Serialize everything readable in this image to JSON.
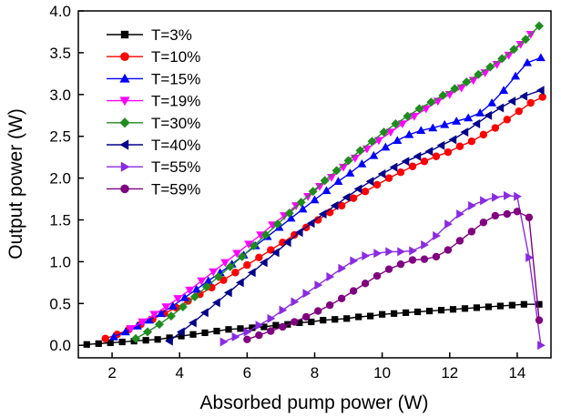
{
  "chart_data": {
    "type": "line",
    "xlabel": "Absorbed pump power (W)",
    "ylabel": "Output power (W)",
    "xlim": [
      1,
      15
    ],
    "ylim": [
      -0.15,
      4.0
    ],
    "xticks": [
      2,
      4,
      6,
      8,
      10,
      12,
      14
    ],
    "yticks": [
      0.0,
      0.5,
      1.0,
      1.5,
      2.0,
      2.5,
      3.0,
      3.5,
      4.0
    ],
    "xtick_labels": [
      "2",
      "4",
      "6",
      "8",
      "10",
      "12",
      "14"
    ],
    "ytick_labels": [
      "0.0",
      "0.5",
      "1.0",
      "1.5",
      "2.0",
      "2.5",
      "3.0",
      "3.5",
      "4.0"
    ],
    "legend_position": "top-left",
    "grid": false,
    "series": [
      {
        "name": "T=3%",
        "color": "#000000",
        "marker": "square",
        "x": [
          1.25,
          1.6,
          1.95,
          2.3,
          2.65,
          3.0,
          3.35,
          3.7,
          4.05,
          4.4,
          4.75,
          5.1,
          5.45,
          5.8,
          6.15,
          6.5,
          6.85,
          7.2,
          7.55,
          7.9,
          8.25,
          8.6,
          8.95,
          9.3,
          9.65,
          10.0,
          10.35,
          10.7,
          11.05,
          11.4,
          11.75,
          12.1,
          12.45,
          12.8,
          13.15,
          13.5,
          13.85,
          14.2,
          14.65
        ],
        "y": [
          0.01,
          0.02,
          0.03,
          0.04,
          0.05,
          0.06,
          0.07,
          0.09,
          0.11,
          0.13,
          0.15,
          0.17,
          0.19,
          0.2,
          0.21,
          0.22,
          0.24,
          0.25,
          0.27,
          0.28,
          0.3,
          0.31,
          0.32,
          0.34,
          0.35,
          0.37,
          0.38,
          0.39,
          0.4,
          0.41,
          0.42,
          0.43,
          0.44,
          0.45,
          0.46,
          0.47,
          0.48,
          0.49,
          0.49
        ]
      },
      {
        "name": "T=10%",
        "color": "#ff0000",
        "marker": "circle",
        "x": [
          1.8,
          2.15,
          2.5,
          2.85,
          3.2,
          3.55,
          3.9,
          4.25,
          4.6,
          4.95,
          5.3,
          5.65,
          6.0,
          6.35,
          6.7,
          7.05,
          7.4,
          7.75,
          8.1,
          8.45,
          8.8,
          9.15,
          9.5,
          9.85,
          10.2,
          10.55,
          10.9,
          11.25,
          11.6,
          11.95,
          12.3,
          12.65,
          13.0,
          13.35,
          13.7,
          14.05,
          14.4,
          14.75
        ],
        "y": [
          0.08,
          0.13,
          0.19,
          0.25,
          0.31,
          0.38,
          0.45,
          0.53,
          0.61,
          0.69,
          0.78,
          0.87,
          0.96,
          1.05,
          1.14,
          1.23,
          1.32,
          1.41,
          1.5,
          1.59,
          1.67,
          1.76,
          1.84,
          1.92,
          2.0,
          2.07,
          2.14,
          2.2,
          2.26,
          2.31,
          2.38,
          2.44,
          2.52,
          2.6,
          2.7,
          2.8,
          2.9,
          2.97
        ]
      },
      {
        "name": "T=15%",
        "color": "#0000ff",
        "marker": "triangle-up",
        "x": [
          2.05,
          2.4,
          2.75,
          3.1,
          3.45,
          3.8,
          4.15,
          4.5,
          4.85,
          5.2,
          5.55,
          5.9,
          6.25,
          6.6,
          6.95,
          7.3,
          7.65,
          8.0,
          8.35,
          8.7,
          9.05,
          9.4,
          9.75,
          10.1,
          10.45,
          10.8,
          11.15,
          11.5,
          11.85,
          12.2,
          12.55,
          12.9,
          13.25,
          13.6,
          13.95,
          14.3,
          14.7
        ],
        "y": [
          0.1,
          0.16,
          0.23,
          0.3,
          0.38,
          0.47,
          0.57,
          0.67,
          0.77,
          0.87,
          0.97,
          1.08,
          1.19,
          1.3,
          1.41,
          1.52,
          1.63,
          1.74,
          1.85,
          1.96,
          2.06,
          2.17,
          2.27,
          2.37,
          2.45,
          2.52,
          2.57,
          2.6,
          2.64,
          2.68,
          2.72,
          2.78,
          2.9,
          3.05,
          3.22,
          3.38,
          3.44
        ]
      },
      {
        "name": "T=19%",
        "color": "#ff00ff",
        "marker": "triangle-down",
        "x": [
          2.55,
          2.9,
          3.25,
          3.6,
          3.95,
          4.3,
          4.65,
          5.0,
          5.35,
          5.7,
          6.05,
          6.4,
          6.75,
          7.1,
          7.45,
          7.8,
          8.15,
          8.5,
          8.85,
          9.2,
          9.55,
          9.9,
          10.25,
          10.6,
          10.95,
          11.3,
          11.65,
          12.0,
          12.35,
          12.7,
          13.05,
          13.4,
          13.75,
          14.1,
          14.4
        ],
        "y": [
          0.2,
          0.28,
          0.37,
          0.46,
          0.56,
          0.66,
          0.77,
          0.88,
          0.99,
          1.1,
          1.21,
          1.32,
          1.44,
          1.55,
          1.67,
          1.78,
          1.9,
          2.01,
          2.13,
          2.24,
          2.35,
          2.45,
          2.55,
          2.65,
          2.74,
          2.83,
          2.92,
          3.0,
          3.08,
          3.17,
          3.26,
          3.36,
          3.47,
          3.6,
          3.72
        ]
      },
      {
        "name": "T=30%",
        "color": "#1e8c1e",
        "marker": "diamond",
        "x": [
          2.7,
          3.05,
          3.4,
          3.75,
          4.1,
          4.45,
          4.8,
          5.15,
          5.5,
          5.85,
          6.2,
          6.55,
          6.9,
          7.25,
          7.6,
          7.95,
          8.3,
          8.65,
          9.0,
          9.35,
          9.7,
          10.05,
          10.4,
          10.75,
          11.1,
          11.45,
          11.8,
          12.15,
          12.5,
          12.85,
          13.2,
          13.55,
          13.9,
          14.25,
          14.65
        ],
        "y": [
          0.08,
          0.16,
          0.25,
          0.35,
          0.46,
          0.58,
          0.7,
          0.82,
          0.94,
          1.06,
          1.19,
          1.32,
          1.45,
          1.58,
          1.71,
          1.84,
          1.97,
          2.09,
          2.21,
          2.33,
          2.44,
          2.55,
          2.65,
          2.74,
          2.83,
          2.91,
          2.99,
          3.07,
          3.15,
          3.24,
          3.33,
          3.43,
          3.54,
          3.66,
          3.82
        ]
      },
      {
        "name": "T=40%",
        "color": "#00008b",
        "marker": "triangle-left",
        "x": [
          3.7,
          4.05,
          4.4,
          4.75,
          5.1,
          5.45,
          5.8,
          6.15,
          6.5,
          6.85,
          7.2,
          7.55,
          7.9,
          8.25,
          8.6,
          8.95,
          9.3,
          9.65,
          10.0,
          10.35,
          10.7,
          11.05,
          11.4,
          11.75,
          12.1,
          12.45,
          12.8,
          13.15,
          13.5,
          13.85,
          14.2,
          14.7
        ],
        "y": [
          0.05,
          0.16,
          0.27,
          0.39,
          0.51,
          0.63,
          0.75,
          0.87,
          0.99,
          1.11,
          1.23,
          1.35,
          1.46,
          1.57,
          1.67,
          1.77,
          1.87,
          1.96,
          2.05,
          2.13,
          2.2,
          2.26,
          2.32,
          2.39,
          2.46,
          2.55,
          2.65,
          2.75,
          2.84,
          2.92,
          2.98,
          3.05
        ]
      },
      {
        "name": "T=55%",
        "color": "#8a2be2",
        "marker": "triangle-right",
        "x": [
          5.3,
          5.65,
          6.0,
          6.35,
          6.7,
          7.05,
          7.4,
          7.75,
          8.1,
          8.45,
          8.8,
          9.15,
          9.5,
          9.85,
          10.2,
          10.55,
          10.9,
          11.25,
          11.6,
          11.95,
          12.3,
          12.65,
          13.0,
          13.35,
          13.7,
          14.0,
          14.35,
          14.7
        ],
        "y": [
          0.04,
          0.1,
          0.16,
          0.24,
          0.32,
          0.42,
          0.52,
          0.62,
          0.72,
          0.82,
          0.92,
          1.01,
          1.07,
          1.1,
          1.12,
          1.12,
          1.13,
          1.2,
          1.31,
          1.45,
          1.57,
          1.67,
          1.73,
          1.77,
          1.79,
          1.78,
          1.05,
          0.0
        ]
      },
      {
        "name": "T=59%",
        "color": "#800080",
        "marker": "circle",
        "x": [
          6.0,
          6.35,
          6.7,
          7.05,
          7.4,
          7.75,
          8.1,
          8.45,
          8.8,
          9.15,
          9.5,
          9.85,
          10.2,
          10.55,
          10.9,
          11.25,
          11.6,
          11.95,
          12.3,
          12.65,
          13.0,
          13.35,
          13.7,
          14.0,
          14.35,
          14.65
        ],
        "y": [
          0.07,
          0.12,
          0.17,
          0.22,
          0.28,
          0.34,
          0.41,
          0.48,
          0.56,
          0.65,
          0.74,
          0.83,
          0.91,
          0.97,
          1.02,
          1.03,
          1.06,
          1.14,
          1.25,
          1.36,
          1.47,
          1.55,
          1.57,
          1.6,
          1.53,
          0.3
        ]
      }
    ]
  }
}
